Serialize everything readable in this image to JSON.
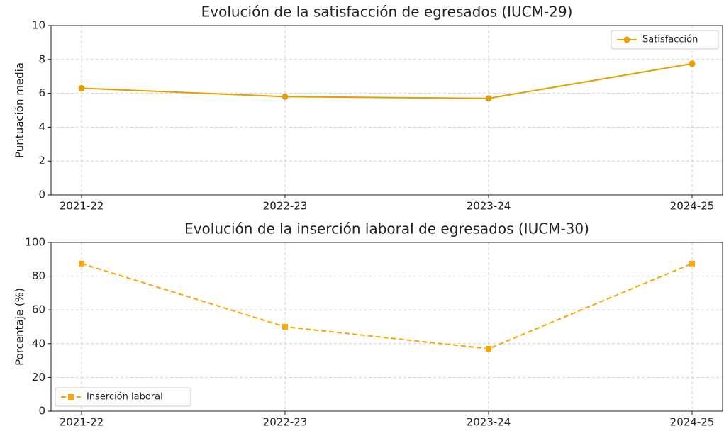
{
  "chart_data": [
    {
      "type": "line",
      "title": "Evolución de la satisfacción de egresados (IUCM-29)",
      "ylabel": "Puntuación media",
      "categories": [
        "2021-22",
        "2022-23",
        "2023-24",
        "2024-25"
      ],
      "series": [
        {
          "name": "Satisfacción",
          "color": "#e69f00",
          "values": [
            6.3,
            5.8,
            5.7,
            7.75
          ],
          "linestyle": "solid",
          "marker": "circle"
        }
      ],
      "ylim": [
        0,
        10
      ],
      "yticks": [
        0,
        2,
        4,
        6,
        8,
        10
      ],
      "grid": true,
      "legend": "upper right"
    },
    {
      "type": "line",
      "title": "Evolución de la inserción laboral de egresados (IUCM-30)",
      "ylabel": "Porcentaje (%)",
      "categories": [
        "2021-22",
        "2022-23",
        "2023-24",
        "2024-25"
      ],
      "series": [
        {
          "name": "Inserción laboral",
          "color": "#ffa500",
          "values": [
            87.5,
            50,
            37,
            87.5
          ],
          "linestyle": "dashed",
          "marker": "square"
        }
      ],
      "ylim": [
        0,
        100
      ],
      "yticks": [
        0,
        20,
        40,
        60,
        80,
        100
      ],
      "grid": true,
      "legend": "lower left"
    }
  ]
}
